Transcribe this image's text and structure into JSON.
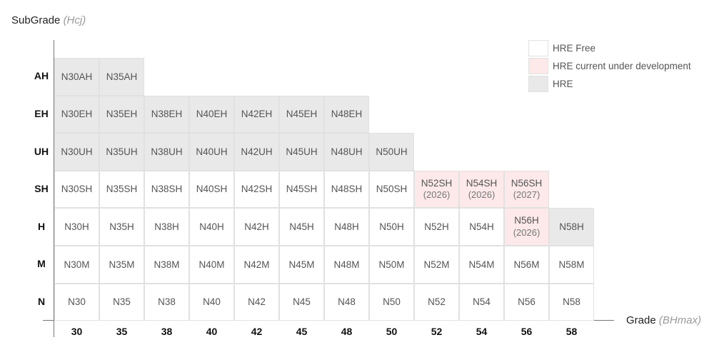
{
  "chart_data": {
    "type": "table",
    "ylabel": {
      "text": "SubGrade",
      "unit": "(Hcj)"
    },
    "xlabel": {
      "text": "Grade",
      "unit": "(BHmax)"
    },
    "columns": [
      "30",
      "35",
      "38",
      "40",
      "42",
      "45",
      "48",
      "50",
      "52",
      "54",
      "56",
      "58"
    ],
    "rows": [
      {
        "label": "AH",
        "cells": [
          {
            "col": "30",
            "text": "N30AH",
            "status": "hre"
          },
          {
            "col": "35",
            "text": "N35AH",
            "status": "hre"
          }
        ]
      },
      {
        "label": "EH",
        "cells": [
          {
            "col": "30",
            "text": "N30EH",
            "status": "hre"
          },
          {
            "col": "35",
            "text": "N35EH",
            "status": "hre"
          },
          {
            "col": "38",
            "text": "N38EH",
            "status": "hre"
          },
          {
            "col": "40",
            "text": "N40EH",
            "status": "hre"
          },
          {
            "col": "42",
            "text": "N42EH",
            "status": "hre"
          },
          {
            "col": "45",
            "text": "N45EH",
            "status": "hre"
          },
          {
            "col": "48",
            "text": "N48EH",
            "status": "hre"
          }
        ]
      },
      {
        "label": "UH",
        "cells": [
          {
            "col": "30",
            "text": "N30UH",
            "status": "hre"
          },
          {
            "col": "35",
            "text": "N35UH",
            "status": "hre"
          },
          {
            "col": "38",
            "text": "N38UH",
            "status": "hre"
          },
          {
            "col": "40",
            "text": "N40UH",
            "status": "hre"
          },
          {
            "col": "42",
            "text": "N42UH",
            "status": "hre"
          },
          {
            "col": "45",
            "text": "N45UH",
            "status": "hre"
          },
          {
            "col": "48",
            "text": "N48UH",
            "status": "hre"
          },
          {
            "col": "50",
            "text": "N50UH",
            "status": "hre"
          }
        ]
      },
      {
        "label": "SH",
        "cells": [
          {
            "col": "30",
            "text": "N30SH",
            "status": "free"
          },
          {
            "col": "35",
            "text": "N35SH",
            "status": "free"
          },
          {
            "col": "38",
            "text": "N38SH",
            "status": "free"
          },
          {
            "col": "40",
            "text": "N40SH",
            "status": "free"
          },
          {
            "col": "42",
            "text": "N42SH",
            "status": "free"
          },
          {
            "col": "45",
            "text": "N45SH",
            "status": "free"
          },
          {
            "col": "48",
            "text": "N48SH",
            "status": "free"
          },
          {
            "col": "50",
            "text": "N50SH",
            "status": "free"
          },
          {
            "col": "52",
            "text": "N52SH",
            "sub": "(2026)",
            "status": "dev"
          },
          {
            "col": "54",
            "text": "N54SH",
            "sub": "(2026)",
            "status": "dev"
          },
          {
            "col": "56",
            "text": "N56SH",
            "sub": "(2027)",
            "status": "dev"
          }
        ]
      },
      {
        "label": "H",
        "cells": [
          {
            "col": "30",
            "text": "N30H",
            "status": "free"
          },
          {
            "col": "35",
            "text": "N35H",
            "status": "free"
          },
          {
            "col": "38",
            "text": "N38H",
            "status": "free"
          },
          {
            "col": "40",
            "text": "N40H",
            "status": "free"
          },
          {
            "col": "42",
            "text": "N42H",
            "status": "free"
          },
          {
            "col": "45",
            "text": "N45H",
            "status": "free"
          },
          {
            "col": "48",
            "text": "N48H",
            "status": "free"
          },
          {
            "col": "50",
            "text": "N50H",
            "status": "free"
          },
          {
            "col": "52",
            "text": "N52H",
            "status": "free"
          },
          {
            "col": "54",
            "text": "N54H",
            "status": "free"
          },
          {
            "col": "56",
            "text": "N56H",
            "sub": "(2026)",
            "status": "dev"
          },
          {
            "col": "58",
            "text": "N58H",
            "status": "hre"
          }
        ]
      },
      {
        "label": "M",
        "cells": [
          {
            "col": "30",
            "text": "N30M",
            "status": "free"
          },
          {
            "col": "35",
            "text": "N35M",
            "status": "free"
          },
          {
            "col": "38",
            "text": "N38M",
            "status": "free"
          },
          {
            "col": "40",
            "text": "N40M",
            "status": "free"
          },
          {
            "col": "42",
            "text": "N42M",
            "status": "free"
          },
          {
            "col": "45",
            "text": "N45M",
            "status": "free"
          },
          {
            "col": "48",
            "text": "N48M",
            "status": "free"
          },
          {
            "col": "50",
            "text": "N50M",
            "status": "free"
          },
          {
            "col": "52",
            "text": "N52M",
            "status": "free"
          },
          {
            "col": "54",
            "text": "N54M",
            "status": "free"
          },
          {
            "col": "56",
            "text": "N56M",
            "status": "free"
          },
          {
            "col": "58",
            "text": "N58M",
            "status": "free"
          }
        ]
      },
      {
        "label": "N",
        "cells": [
          {
            "col": "30",
            "text": "N30",
            "status": "free"
          },
          {
            "col": "35",
            "text": "N35",
            "status": "free"
          },
          {
            "col": "38",
            "text": "N38",
            "status": "free"
          },
          {
            "col": "40",
            "text": "N40",
            "status": "free"
          },
          {
            "col": "42",
            "text": "N42",
            "status": "free"
          },
          {
            "col": "45",
            "text": "N45",
            "status": "free"
          },
          {
            "col": "48",
            "text": "N48",
            "status": "free"
          },
          {
            "col": "50",
            "text": "N50",
            "status": "free"
          },
          {
            "col": "52",
            "text": "N52",
            "status": "free"
          },
          {
            "col": "54",
            "text": "N54",
            "status": "free"
          },
          {
            "col": "56",
            "text": "N56",
            "status": "free"
          },
          {
            "col": "58",
            "text": "N58",
            "status": "free"
          }
        ]
      }
    ],
    "legend": {
      "position": "top-right",
      "items": [
        {
          "label": "HRE Free",
          "status": "free"
        },
        {
          "label": "HRE current under development",
          "status": "dev"
        },
        {
          "label": "HRE",
          "status": "hre"
        }
      ]
    },
    "colors": {
      "free": "#ffffff",
      "dev": "#fde9e9",
      "hre": "#e9e9e9",
      "border": "#e1e1e1"
    }
  }
}
